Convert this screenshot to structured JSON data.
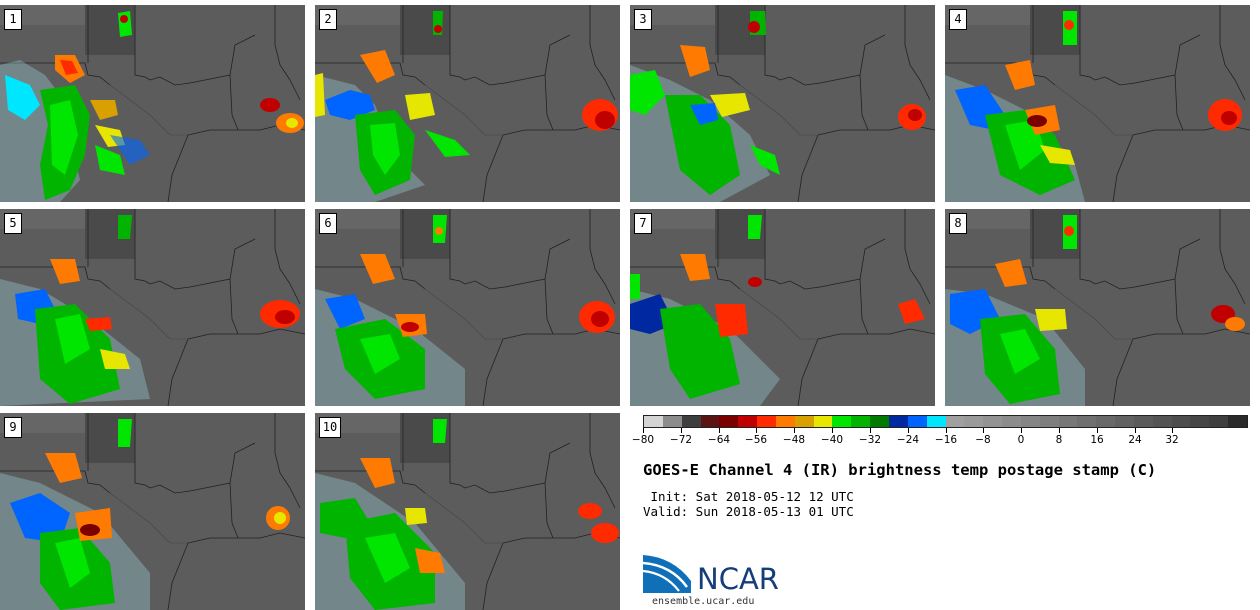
{
  "panels": [
    {
      "label": "1"
    },
    {
      "label": "2"
    },
    {
      "label": "3"
    },
    {
      "label": "4"
    },
    {
      "label": "5"
    },
    {
      "label": "6"
    },
    {
      "label": "7"
    },
    {
      "label": "8"
    },
    {
      "label": "9"
    },
    {
      "label": "10"
    }
  ],
  "colorbar": {
    "colors": [
      "#d4d4d4",
      "#8c8c8c",
      "#3e3e3e",
      "#5a1414",
      "#7a0000",
      "#c00000",
      "#ff2a00",
      "#ff7a00",
      "#d8a000",
      "#e6e600",
      "#00e600",
      "#00b400",
      "#007a00",
      "#0028a0",
      "#0064ff",
      "#00e6ff",
      "#a0a0a0",
      "#9a9a9a",
      "#939393",
      "#8c8c8c",
      "#858585",
      "#7e7e7e",
      "#777777",
      "#707070",
      "#696969",
      "#626262",
      "#5b5b5b",
      "#545454",
      "#4d4d4d",
      "#464646",
      "#3f3f3f",
      "#2a2a2a"
    ],
    "ticks": [
      "−80",
      "−72",
      "−64",
      "−56",
      "−48",
      "−40",
      "−32",
      "−24",
      "−16",
      "−8",
      "0",
      "8",
      "16",
      "24",
      "32"
    ]
  },
  "title": "GOES-E Channel 4 (IR) brightness temp postage stamp (C)",
  "init_line": " Init: Sat 2018-05-12 12 UTC",
  "valid_line": "Valid: Sun 2018-05-13 01 UTC",
  "logo_text": "NCAR",
  "url": "ensemble.ucar.edu"
}
